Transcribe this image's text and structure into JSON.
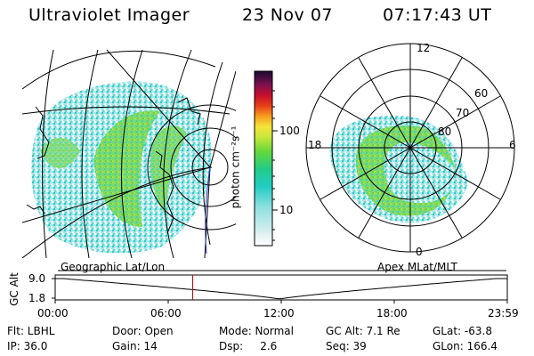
{
  "header": {
    "instrument": "Ultraviolet Imager",
    "date": "23 Nov 07",
    "time": "07:17:43 UT"
  },
  "colorbar": {
    "unit_label": "photon cm⁻²s⁻¹",
    "ticks": [
      "100",
      "10"
    ]
  },
  "geo_panel": {
    "label": "Geographic Lat/Lon"
  },
  "polar_panel": {
    "label": "Apex MLat/MLT",
    "mlt_labels": {
      "top": "12",
      "left": "18",
      "right": "6",
      "bottom": "0"
    },
    "lat_labels": [
      "60",
      "70",
      "80"
    ]
  },
  "altitude_plot": {
    "ylabel": "GC Alt",
    "yticks": [
      "9.0",
      "1.8"
    ],
    "time_ticks": [
      "00:00",
      "06:00",
      "12:00",
      "18:00",
      "23:59"
    ],
    "current_time_hours": 7.3,
    "curve_color": "#000000",
    "marker_color": "#cc0000"
  },
  "status": {
    "row1": [
      {
        "label": "Flt: LBHL"
      },
      {
        "label": "Door: Open"
      },
      {
        "label": "Mode: Normal"
      },
      {
        "label": "GC Alt: 7.1 Re"
      },
      {
        "label": "GLat: -63.8"
      }
    ],
    "row2": [
      {
        "label": "IP: 36.0"
      },
      {
        "label": "Gain: 14"
      },
      {
        "label": "Dsp:     2.6"
      },
      {
        "label": "Seq: 39"
      },
      {
        "label": "GLon: 166.4"
      }
    ]
  }
}
